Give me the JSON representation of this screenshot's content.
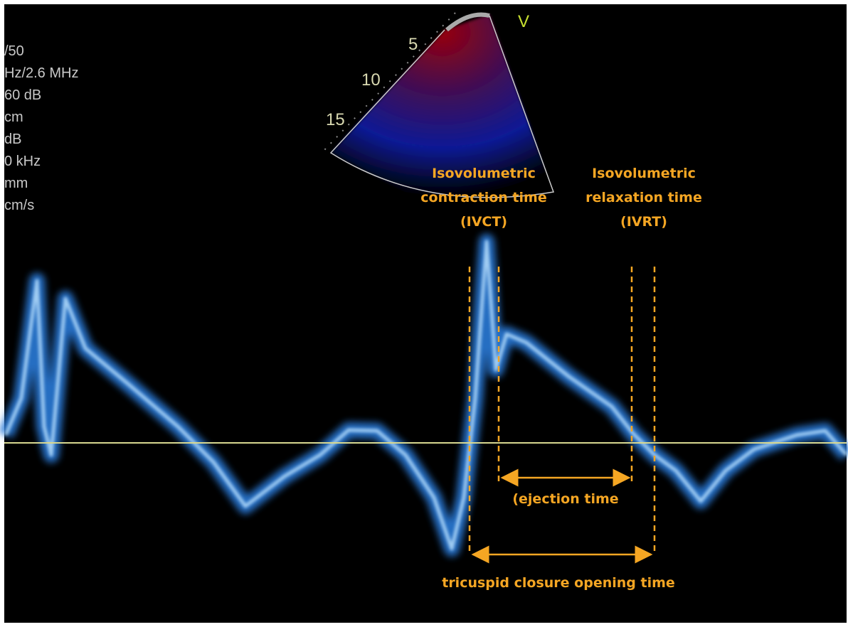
{
  "settings": [
    "/50",
    "Hz/2.6 MHz",
    "60 dB",
    "cm",
    "dB",
    "0 kHz",
    "mm",
    "cm/s"
  ],
  "depth_labels": [
    "5",
    "10",
    "15"
  ],
  "mode_label": "V",
  "ivct_label": [
    "Isovolumetric",
    "contraction time",
    "(IVCT)"
  ],
  "ivrt_label": [
    "Isovolumetric",
    "relaxation time",
    "(IVRT)"
  ],
  "ejection_label": "(ejection time",
  "closure_label": "tricuspid closure opening time"
}
